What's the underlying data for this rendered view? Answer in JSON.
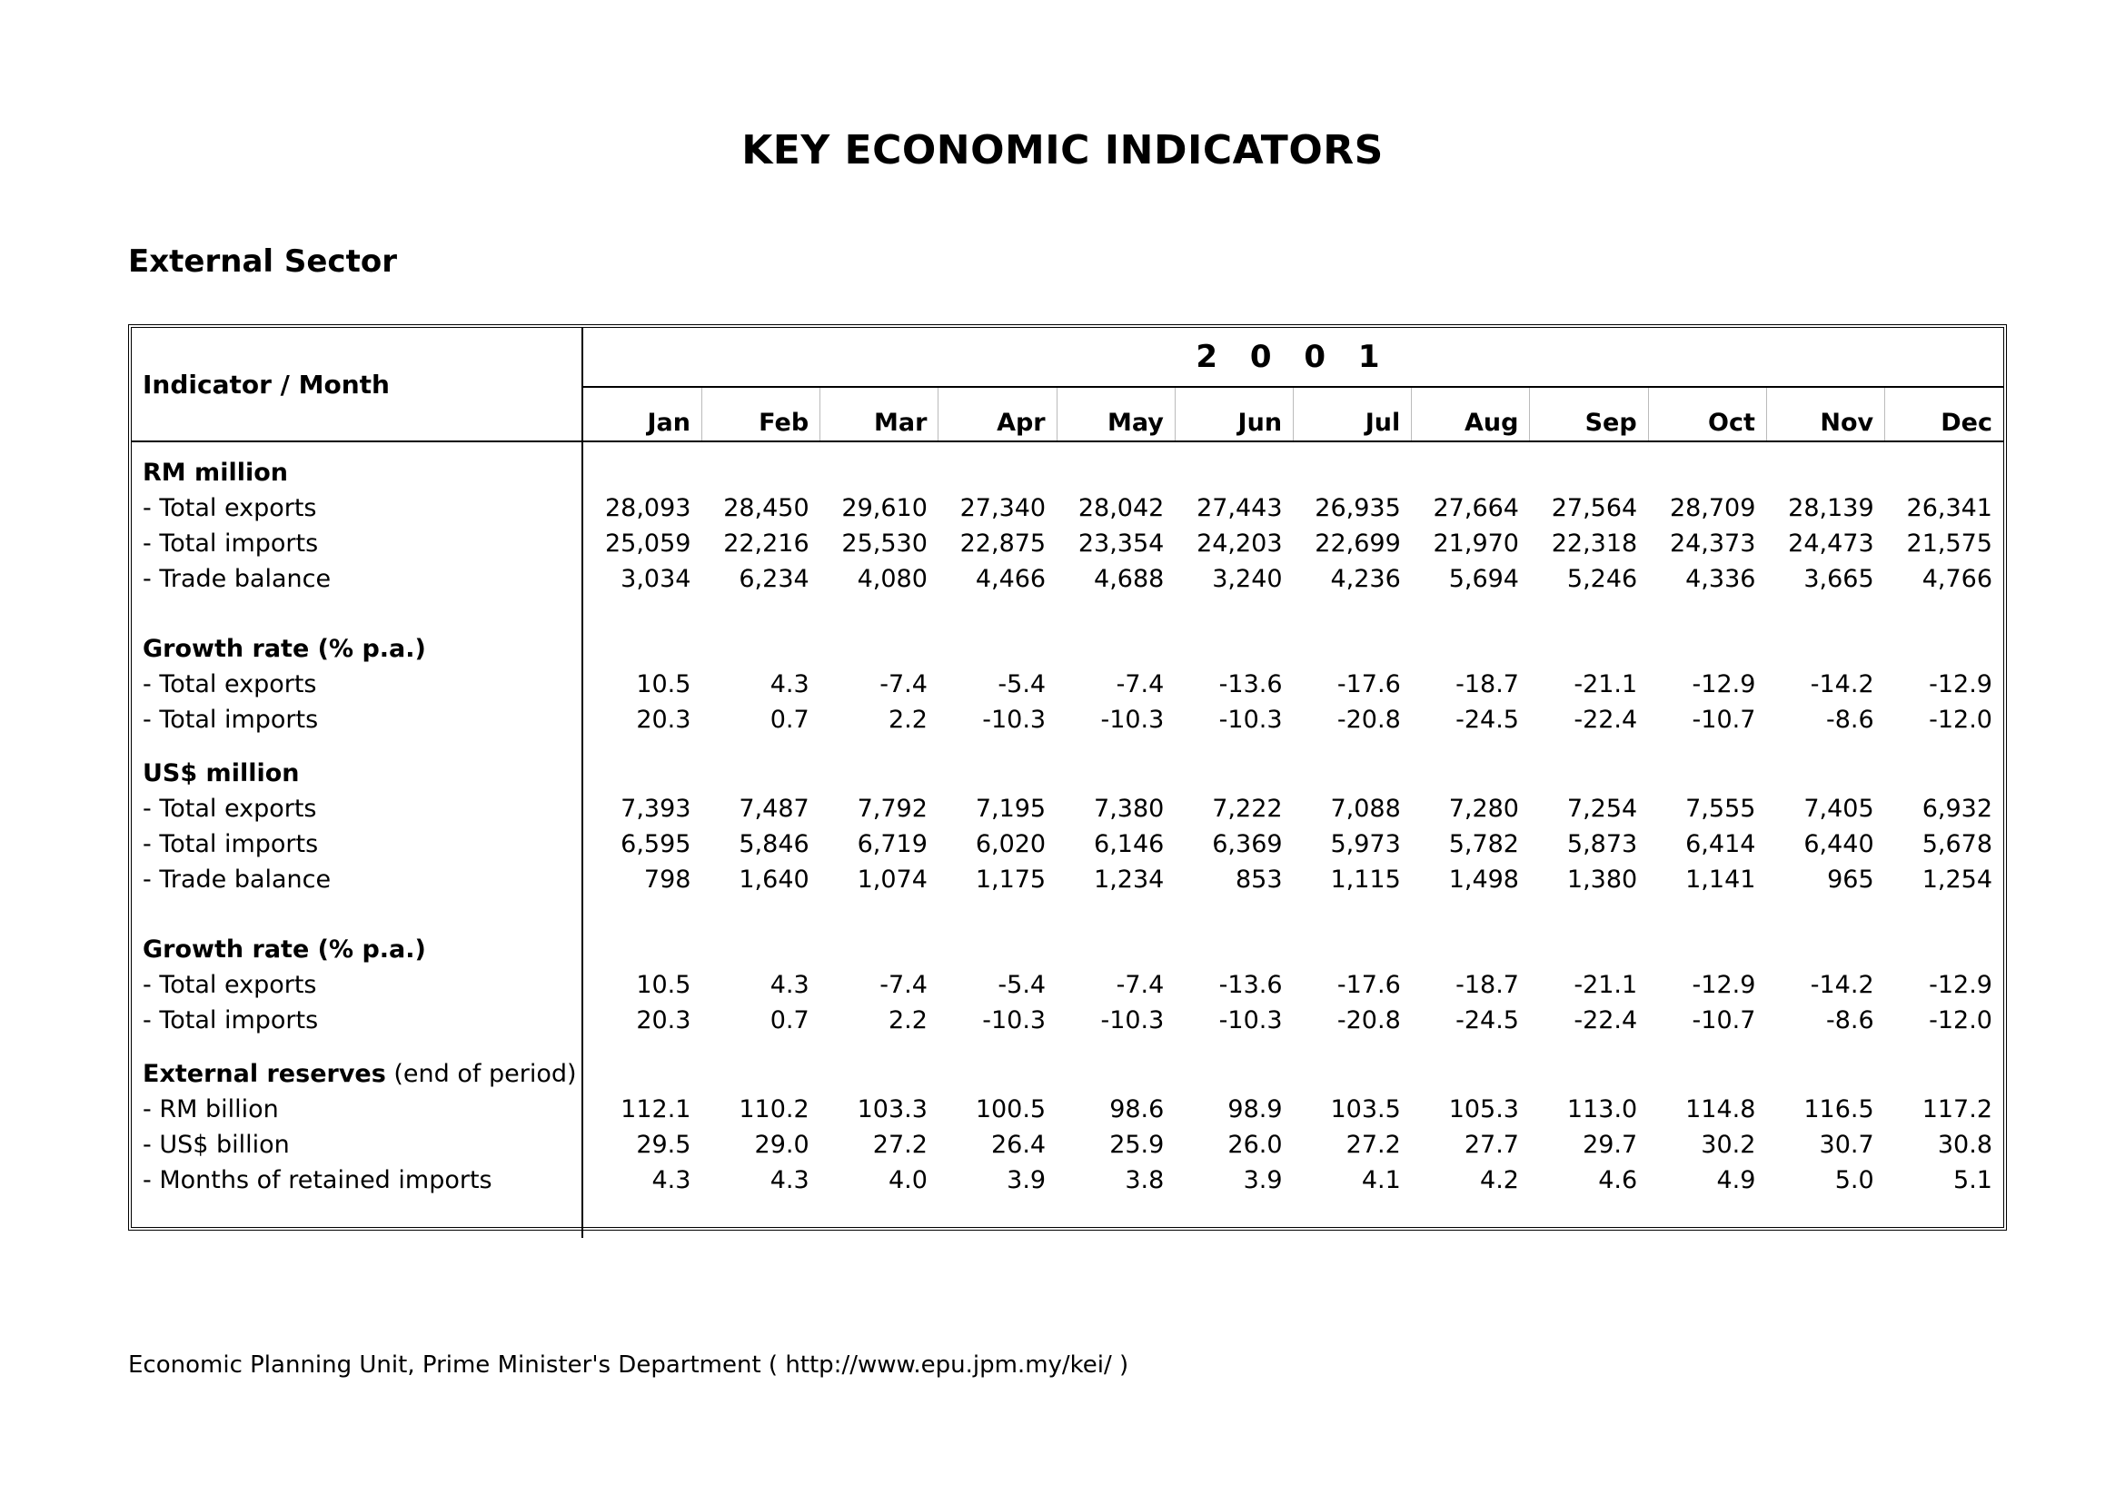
{
  "title": "KEY ECONOMIC INDICATORS",
  "section": "External Sector",
  "table": {
    "corner_label": "Indicator / Month",
    "year": "2 0 0 1",
    "months": [
      "Jan",
      "Feb",
      "Mar",
      "Apr",
      "May",
      "Jun",
      "Jul",
      "Aug",
      "Sep",
      "Oct",
      "Nov",
      "Dec"
    ],
    "groups": [
      {
        "heading": "RM million",
        "rows": [
          {
            "label": "- Total exports",
            "values": [
              "28,093",
              "28,450",
              "29,610",
              "27,340",
              "28,042",
              "27,443",
              "26,935",
              "27,664",
              "27,564",
              "28,709",
              "28,139",
              "26,341"
            ]
          },
          {
            "label": "- Total imports",
            "values": [
              "25,059",
              "22,216",
              "25,530",
              "22,875",
              "23,354",
              "24,203",
              "22,699",
              "21,970",
              "22,318",
              "24,373",
              "24,473",
              "21,575"
            ]
          },
          {
            "label": "- Trade balance",
            "values": [
              "3,034",
              "6,234",
              "4,080",
              "4,466",
              "4,688",
              "3,240",
              "4,236",
              "5,694",
              "5,246",
              "4,336",
              "3,665",
              "4,766"
            ]
          }
        ]
      },
      {
        "heading": "Growth rate (% p.a.)",
        "rows": [
          {
            "label": "- Total exports",
            "values": [
              "10.5",
              "4.3",
              "-7.4",
              "-5.4",
              "-7.4",
              "-13.6",
              "-17.6",
              "-18.7",
              "-21.1",
              "-12.9",
              "-14.2",
              "-12.9"
            ]
          },
          {
            "label": "- Total imports",
            "values": [
              "20.3",
              "0.7",
              "2.2",
              "-10.3",
              "-10.3",
              "-10.3",
              "-20.8",
              "-24.5",
              "-22.4",
              "-10.7",
              "-8.6",
              "-12.0"
            ]
          }
        ]
      },
      {
        "heading": "US$ million",
        "rows": [
          {
            "label": "- Total exports",
            "values": [
              "7,393",
              "7,487",
              "7,792",
              "7,195",
              "7,380",
              "7,222",
              "7,088",
              "7,280",
              "7,254",
              "7,555",
              "7,405",
              "6,932"
            ]
          },
          {
            "label": "- Total imports",
            "values": [
              "6,595",
              "5,846",
              "6,719",
              "6,020",
              "6,146",
              "6,369",
              "5,973",
              "5,782",
              "5,873",
              "6,414",
              "6,440",
              "5,678"
            ]
          },
          {
            "label": "- Trade balance",
            "values": [
              "798",
              "1,640",
              "1,074",
              "1,175",
              "1,234",
              "853",
              "1,115",
              "1,498",
              "1,380",
              "1,141",
              "965",
              "1,254"
            ]
          }
        ]
      },
      {
        "heading": "Growth rate (% p.a.)",
        "rows": [
          {
            "label": "- Total exports",
            "values": [
              "10.5",
              "4.3",
              "-7.4",
              "-5.4",
              "-7.4",
              "-13.6",
              "-17.6",
              "-18.7",
              "-21.1",
              "-12.9",
              "-14.2",
              "-12.9"
            ]
          },
          {
            "label": "- Total imports",
            "values": [
              "20.3",
              "0.7",
              "2.2",
              "-10.3",
              "-10.3",
              "-10.3",
              "-20.8",
              "-24.5",
              "-22.4",
              "-10.7",
              "-8.6",
              "-12.0"
            ]
          }
        ]
      },
      {
        "heading": "External reserves",
        "heading_suffix": " (end of period)",
        "rows": [
          {
            "label": "- RM billion",
            "values": [
              "112.1",
              "110.2",
              "103.3",
              "100.5",
              "98.6",
              "98.9",
              "103.5",
              "105.3",
              "113.0",
              "114.8",
              "116.5",
              "117.2"
            ]
          },
          {
            "label": "- US$ billion",
            "values": [
              "29.5",
              "29.0",
              "27.2",
              "26.4",
              "25.9",
              "26.0",
              "27.2",
              "27.7",
              "29.7",
              "30.2",
              "30.7",
              "30.8"
            ]
          },
          {
            "label": "- Months of retained imports",
            "values": [
              "4.3",
              "4.3",
              "4.0",
              "3.9",
              "3.8",
              "3.9",
              "4.1",
              "4.2",
              "4.6",
              "4.9",
              "5.0",
              "5.1"
            ]
          }
        ]
      }
    ]
  },
  "footer": "Economic Planning Unit, Prime Minister's Department ( http://www.epu.jpm.my/kei/ )"
}
